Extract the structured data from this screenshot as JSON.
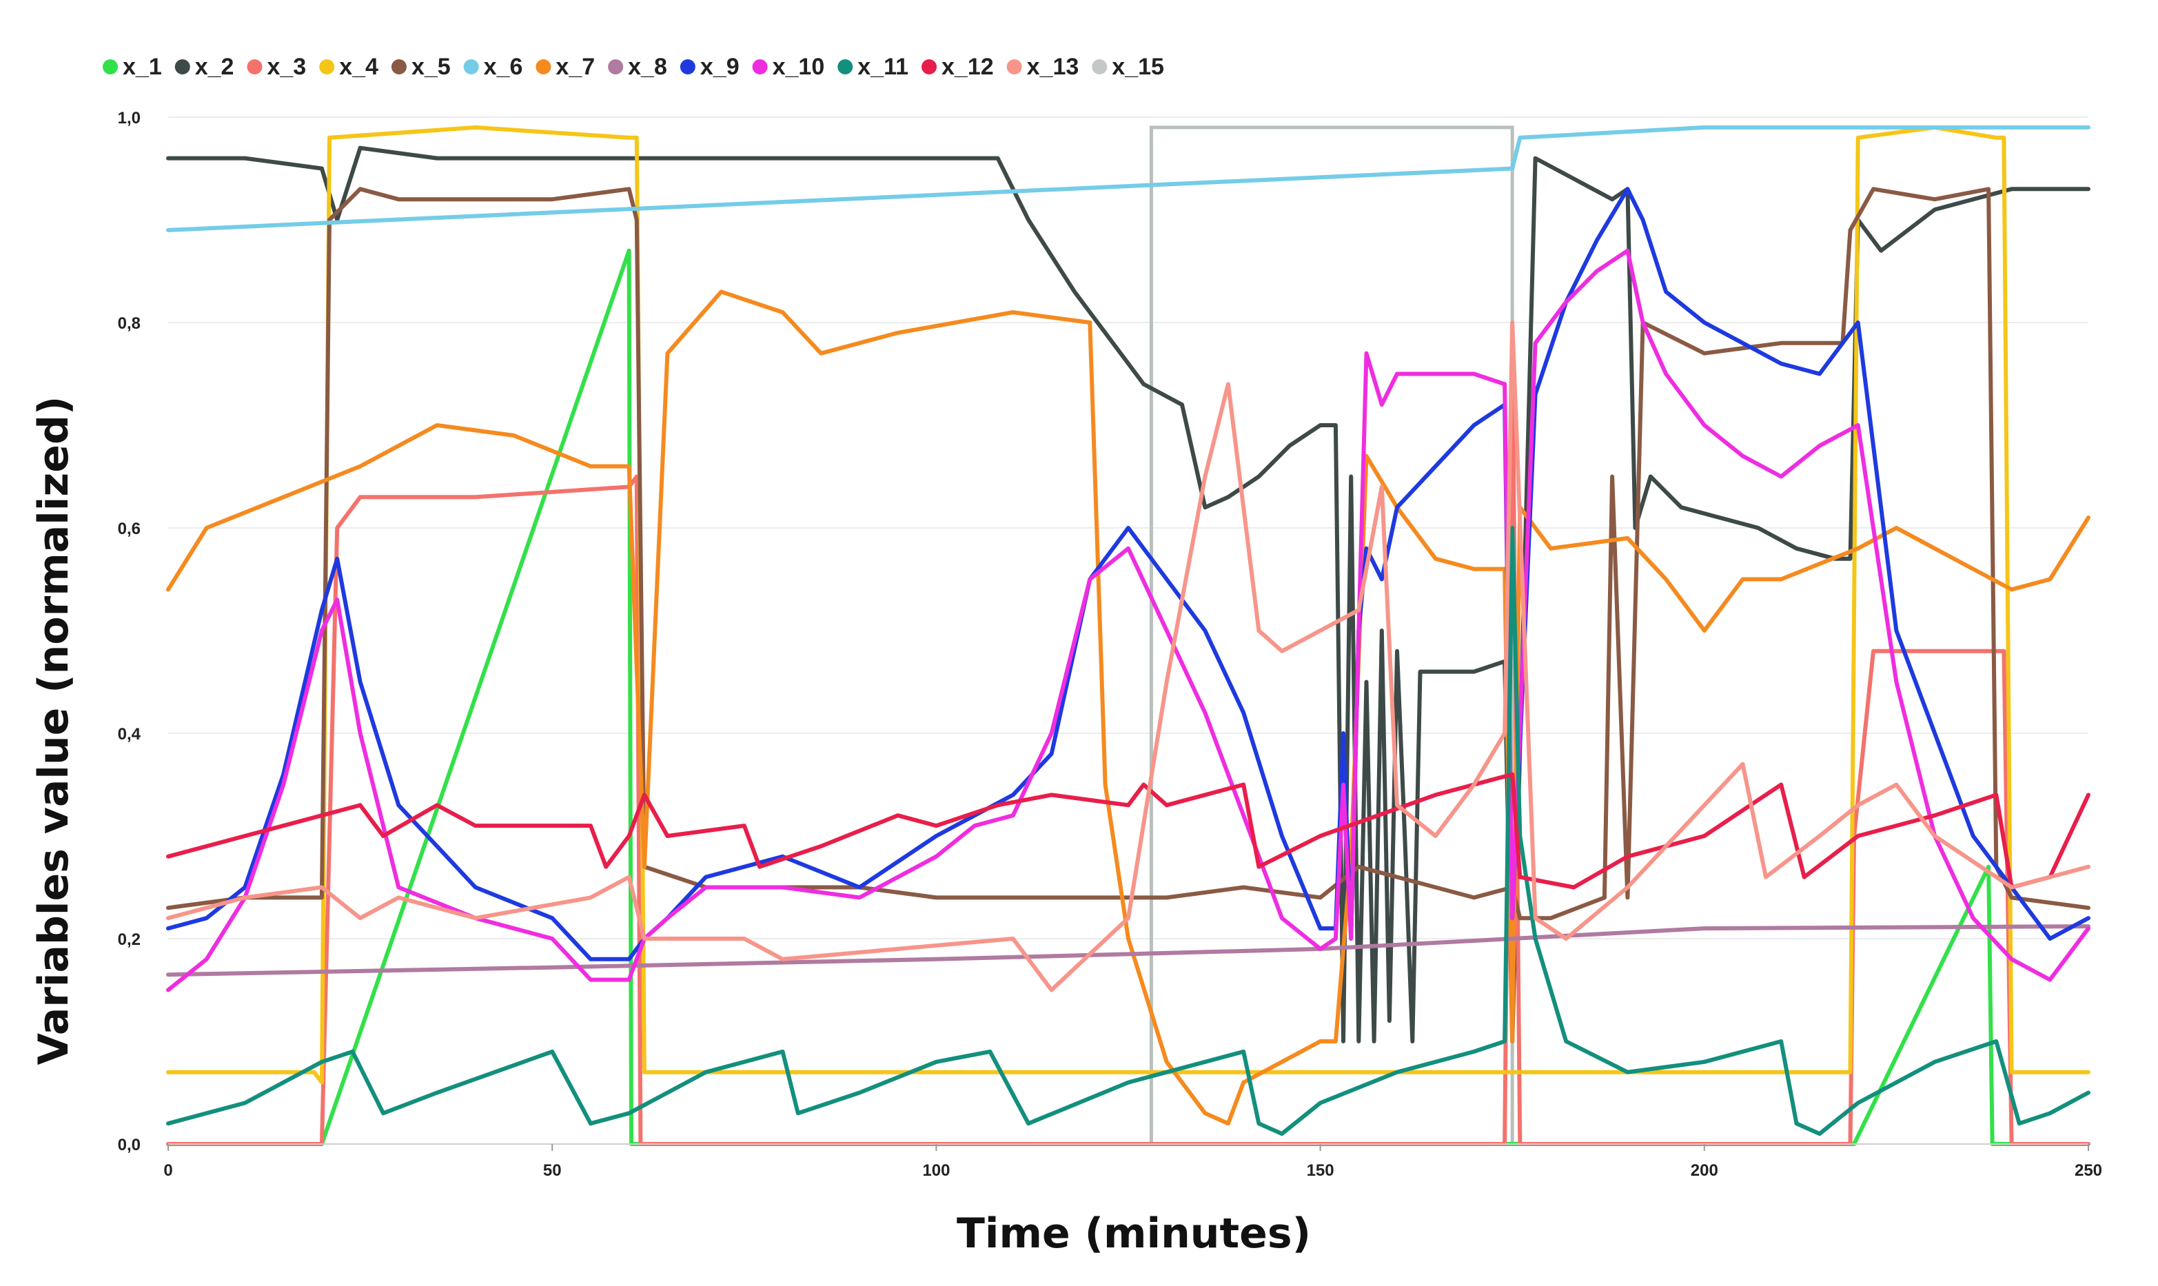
{
  "chart_data": {
    "type": "line",
    "title": "",
    "xlabel": "Time (minutes)",
    "ylabel": "Variables value (normalized)",
    "xlim": [
      0,
      250
    ],
    "ylim": [
      0,
      1
    ],
    "xticks": [
      "0",
      "50",
      "100",
      "150",
      "200",
      "250"
    ],
    "xtick_values": [
      0,
      50,
      100,
      150,
      200,
      250
    ],
    "yticks": [
      "0,0",
      "0,2",
      "0,4",
      "0,6",
      "0,8",
      "1,0"
    ],
    "ytick_values": [
      0,
      0.2,
      0.4,
      0.6,
      0.8,
      1.0
    ],
    "grid": "horizontal",
    "legend_position": "top",
    "highlight_box": {
      "x": [
        128,
        175
      ],
      "y": [
        0,
        0.99
      ],
      "color": "#b8c0bc"
    },
    "series": [
      {
        "name": "x_1",
        "color": "#33e04a",
        "marker": "dot",
        "x": [
          0,
          20,
          60,
          60.3,
          61,
          219,
          219.5,
          237,
          237.5,
          250
        ],
        "y": [
          0,
          0,
          0.87,
          0,
          0,
          0,
          0,
          0.27,
          0,
          0
        ]
      },
      {
        "name": "x_2",
        "color": "#3d4a48",
        "x": [
          0,
          10,
          20,
          22,
          25,
          35,
          50,
          60,
          70,
          80,
          90,
          100,
          108,
          112,
          118,
          124,
          127,
          132,
          135,
          138,
          142,
          146,
          150,
          152,
          153,
          154,
          155,
          156,
          157,
          158,
          159,
          160,
          161,
          162,
          163,
          165,
          170,
          174,
          175,
          178,
          183,
          188,
          190,
          191,
          193,
          197,
          202,
          207,
          212,
          217,
          219,
          220,
          223,
          230,
          240,
          250
        ],
        "y": [
          0.96,
          0.96,
          0.95,
          0.9,
          0.97,
          0.96,
          0.96,
          0.96,
          0.96,
          0.96,
          0.96,
          0.96,
          0.96,
          0.9,
          0.83,
          0.77,
          0.74,
          0.72,
          0.62,
          0.63,
          0.65,
          0.68,
          0.7,
          0.7,
          0.1,
          0.65,
          0.1,
          0.45,
          0.1,
          0.5,
          0.12,
          0.48,
          0.3,
          0.1,
          0.46,
          0.46,
          0.46,
          0.47,
          0.1,
          0.96,
          0.94,
          0.92,
          0.93,
          0.6,
          0.65,
          0.62,
          0.61,
          0.6,
          0.58,
          0.57,
          0.57,
          0.9,
          0.87,
          0.91,
          0.93,
          0.93
        ]
      },
      {
        "name": "x_3",
        "color": "#f4726c",
        "x": [
          0,
          20,
          22,
          25,
          40,
          60,
          61,
          61.5,
          127,
          128,
          174,
          175,
          176,
          190,
          200,
          215,
          219,
          219.5,
          222,
          230,
          239,
          240,
          250
        ],
        "y": [
          0,
          0,
          0.6,
          0.63,
          0.63,
          0.64,
          0.65,
          0,
          0,
          0,
          0,
          0.78,
          0,
          0,
          0,
          0,
          0,
          0.3,
          0.48,
          0.48,
          0.48,
          0,
          0
        ]
      },
      {
        "name": "x_4",
        "color": "#f5c518",
        "x": [
          0,
          19,
          20,
          21,
          40,
          60,
          61,
          62,
          100,
          127,
          175,
          218,
          219,
          220,
          230,
          238,
          239,
          240,
          250
        ],
        "y": [
          0.07,
          0.07,
          0.06,
          0.98,
          0.99,
          0.98,
          0.98,
          0.07,
          0.07,
          0.07,
          0.07,
          0.07,
          0.07,
          0.98,
          0.99,
          0.98,
          0.98,
          0.07,
          0.07
        ]
      },
      {
        "name": "x_5",
        "color": "#8a5a44",
        "x": [
          0,
          10,
          20,
          21,
          25,
          30,
          40,
          50,
          60,
          61,
          62,
          70,
          80,
          90,
          100,
          110,
          120,
          130,
          140,
          150,
          155,
          160,
          170,
          175,
          176,
          180,
          187,
          188,
          190,
          192,
          200,
          210,
          218,
          219,
          222,
          230,
          237,
          238,
          240,
          250
        ],
        "y": [
          0.23,
          0.24,
          0.24,
          0.9,
          0.93,
          0.92,
          0.92,
          0.92,
          0.93,
          0.9,
          0.27,
          0.25,
          0.25,
          0.25,
          0.24,
          0.24,
          0.24,
          0.24,
          0.25,
          0.24,
          0.27,
          0.26,
          0.24,
          0.25,
          0.22,
          0.22,
          0.24,
          0.65,
          0.24,
          0.8,
          0.77,
          0.78,
          0.78,
          0.89,
          0.93,
          0.92,
          0.93,
          0.27,
          0.24,
          0.23
        ]
      },
      {
        "name": "x_6",
        "color": "#74cce8",
        "x": [
          0,
          175,
          176,
          200,
          250
        ],
        "y": [
          0.89,
          0.95,
          0.98,
          0.99,
          0.99
        ]
      },
      {
        "name": "x_7",
        "color": "#f58a1f",
        "x": [
          0,
          5,
          15,
          25,
          35,
          45,
          55,
          60,
          62,
          65,
          72,
          80,
          85,
          95,
          110,
          120,
          122,
          125,
          130,
          135,
          138,
          140,
          145,
          150,
          152,
          154,
          156,
          160,
          165,
          170,
          174,
          175,
          176,
          180,
          190,
          195,
          200,
          205,
          210,
          220,
          225,
          235,
          240,
          245,
          250
        ],
        "y": [
          0.54,
          0.6,
          0.63,
          0.66,
          0.7,
          0.69,
          0.66,
          0.66,
          0.27,
          0.77,
          0.83,
          0.81,
          0.77,
          0.79,
          0.81,
          0.8,
          0.35,
          0.2,
          0.08,
          0.03,
          0.02,
          0.06,
          0.08,
          0.1,
          0.1,
          0.28,
          0.67,
          0.62,
          0.57,
          0.56,
          0.56,
          0.1,
          0.62,
          0.58,
          0.59,
          0.55,
          0.5,
          0.55,
          0.55,
          0.58,
          0.6,
          0.56,
          0.54,
          0.55,
          0.61
        ]
      },
      {
        "name": "x_8",
        "color": "#b07aa1",
        "x": [
          0,
          50,
          100,
          150,
          175,
          200,
          250
        ],
        "y": [
          0.165,
          0.172,
          0.18,
          0.19,
          0.2,
          0.21,
          0.212
        ]
      },
      {
        "name": "x_9",
        "color": "#1e3adf",
        "x": [
          0,
          5,
          10,
          15,
          20,
          22,
          25,
          30,
          40,
          50,
          55,
          60,
          62,
          65,
          70,
          80,
          90,
          100,
          105,
          110,
          115,
          120,
          125,
          130,
          135,
          140,
          145,
          150,
          152,
          153,
          154,
          155,
          156,
          158,
          160,
          165,
          170,
          174,
          175,
          178,
          182,
          186,
          190,
          192,
          195,
          200,
          205,
          210,
          215,
          220,
          225,
          230,
          235,
          240,
          245,
          250
        ],
        "y": [
          0.21,
          0.22,
          0.25,
          0.36,
          0.52,
          0.57,
          0.45,
          0.33,
          0.25,
          0.22,
          0.18,
          0.18,
          0.2,
          0.22,
          0.26,
          0.28,
          0.25,
          0.3,
          0.32,
          0.34,
          0.38,
          0.55,
          0.6,
          0.55,
          0.5,
          0.42,
          0.3,
          0.21,
          0.21,
          0.4,
          0.2,
          0.5,
          0.58,
          0.55,
          0.62,
          0.66,
          0.7,
          0.72,
          0.22,
          0.73,
          0.82,
          0.88,
          0.93,
          0.9,
          0.83,
          0.8,
          0.78,
          0.76,
          0.75,
          0.8,
          0.5,
          0.4,
          0.3,
          0.25,
          0.2,
          0.22
        ]
      },
      {
        "name": "x_10",
        "color": "#ef2de0",
        "x": [
          0,
          5,
          10,
          15,
          20,
          22,
          25,
          30,
          40,
          50,
          55,
          60,
          62,
          65,
          70,
          80,
          90,
          100,
          105,
          110,
          115,
          120,
          125,
          130,
          135,
          140,
          145,
          150,
          152,
          153,
          154,
          155,
          156,
          158,
          160,
          165,
          170,
          174,
          175,
          178,
          182,
          186,
          190,
          192,
          195,
          200,
          205,
          210,
          215,
          220,
          225,
          230,
          235,
          240,
          245,
          250
        ],
        "y": [
          0.15,
          0.18,
          0.24,
          0.35,
          0.5,
          0.53,
          0.4,
          0.25,
          0.22,
          0.2,
          0.16,
          0.16,
          0.2,
          0.22,
          0.25,
          0.25,
          0.24,
          0.28,
          0.31,
          0.32,
          0.4,
          0.55,
          0.58,
          0.5,
          0.42,
          0.32,
          0.22,
          0.19,
          0.2,
          0.35,
          0.2,
          0.5,
          0.77,
          0.72,
          0.75,
          0.75,
          0.75,
          0.74,
          0.22,
          0.78,
          0.82,
          0.85,
          0.87,
          0.8,
          0.75,
          0.7,
          0.67,
          0.65,
          0.68,
          0.7,
          0.45,
          0.3,
          0.22,
          0.18,
          0.16,
          0.21
        ]
      },
      {
        "name": "x_11",
        "color": "#138f7d",
        "x": [
          0,
          10,
          20,
          24,
          28,
          35,
          50,
          55,
          60,
          70,
          80,
          82,
          90,
          100,
          107,
          112,
          125,
          130,
          140,
          142,
          145,
          150,
          160,
          170,
          174,
          175,
          176,
          178,
          182,
          190,
          200,
          210,
          212,
          215,
          220,
          230,
          238,
          241,
          245,
          250
        ],
        "y": [
          0.02,
          0.04,
          0.08,
          0.09,
          0.03,
          0.05,
          0.09,
          0.02,
          0.03,
          0.07,
          0.09,
          0.03,
          0.05,
          0.08,
          0.09,
          0.02,
          0.06,
          0.07,
          0.09,
          0.02,
          0.01,
          0.04,
          0.07,
          0.09,
          0.1,
          0.6,
          0.3,
          0.2,
          0.1,
          0.07,
          0.08,
          0.1,
          0.02,
          0.01,
          0.04,
          0.08,
          0.1,
          0.02,
          0.03,
          0.05
        ]
      },
      {
        "name": "x_12",
        "color": "#e81e4b",
        "x": [
          0,
          10,
          20,
          25,
          28,
          35,
          40,
          55,
          57,
          60,
          62,
          65,
          75,
          77,
          85,
          95,
          100,
          108,
          115,
          125,
          127,
          130,
          140,
          142,
          150,
          165,
          175,
          176,
          183,
          190,
          200,
          210,
          213,
          220,
          230,
          238,
          240,
          245,
          250
        ],
        "y": [
          0.28,
          0.3,
          0.32,
          0.33,
          0.3,
          0.33,
          0.31,
          0.31,
          0.27,
          0.3,
          0.34,
          0.3,
          0.31,
          0.27,
          0.29,
          0.32,
          0.31,
          0.33,
          0.34,
          0.33,
          0.35,
          0.33,
          0.35,
          0.27,
          0.3,
          0.34,
          0.36,
          0.26,
          0.25,
          0.28,
          0.3,
          0.35,
          0.26,
          0.3,
          0.32,
          0.34,
          0.25,
          0.26,
          0.34
        ]
      },
      {
        "name": "x_13",
        "color": "#f7958a",
        "x": [
          0,
          10,
          20,
          25,
          30,
          40,
          55,
          60,
          62,
          65,
          75,
          80,
          95,
          110,
          115,
          125,
          130,
          135,
          138,
          142,
          145,
          150,
          155,
          158,
          160,
          165,
          170,
          174,
          175,
          178,
          182,
          190,
          200,
          205,
          208,
          215,
          220,
          225,
          230,
          240,
          245,
          250
        ],
        "y": [
          0.22,
          0.24,
          0.25,
          0.22,
          0.24,
          0.22,
          0.24,
          0.26,
          0.2,
          0.2,
          0.2,
          0.18,
          0.19,
          0.2,
          0.15,
          0.22,
          0.45,
          0.65,
          0.74,
          0.5,
          0.48,
          0.5,
          0.52,
          0.64,
          0.33,
          0.3,
          0.35,
          0.4,
          0.8,
          0.22,
          0.2,
          0.25,
          0.33,
          0.37,
          0.26,
          0.3,
          0.33,
          0.35,
          0.3,
          0.25,
          0.26,
          0.27
        ]
      },
      {
        "name": "x_15",
        "color": "#c4c8c6",
        "x": [],
        "y": []
      }
    ]
  }
}
